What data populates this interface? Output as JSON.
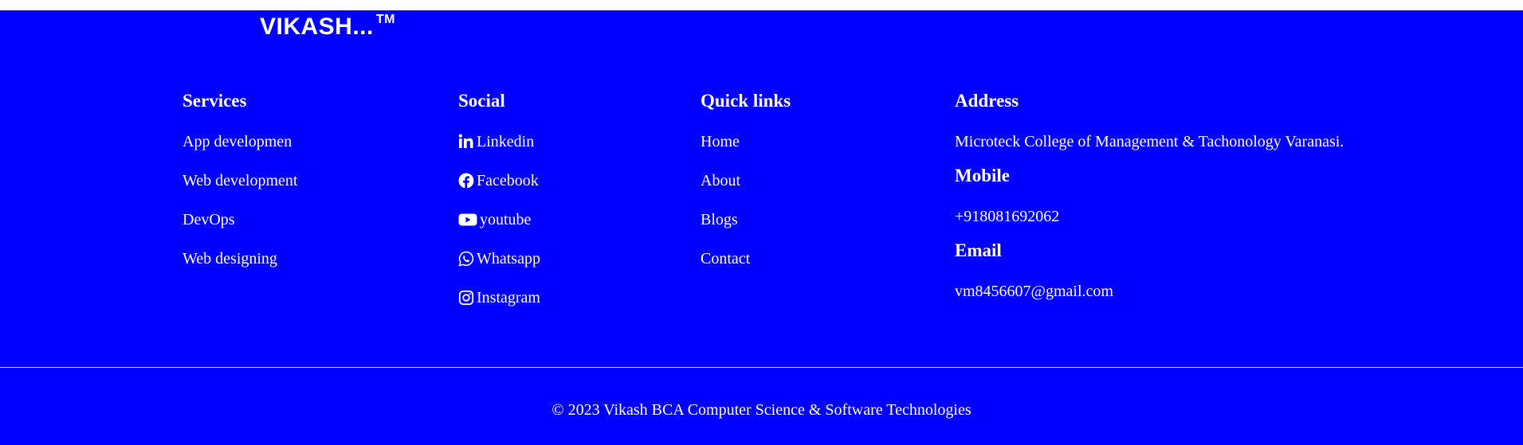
{
  "brand": {
    "name": "VIKASH...",
    "tm": "TM"
  },
  "services": {
    "heading": "Services",
    "items": [
      "App developmen",
      "Web development",
      "DevOps",
      "Web designing"
    ]
  },
  "social": {
    "heading": "Social",
    "items": [
      {
        "label": "Linkedin",
        "icon": "linkedin-icon"
      },
      {
        "label": "Facebook",
        "icon": "facebook-icon"
      },
      {
        "label": "youtube",
        "icon": "youtube-icon"
      },
      {
        "label": "Whatsapp",
        "icon": "whatsapp-icon"
      },
      {
        "label": "Instagram",
        "icon": "instagram-icon"
      }
    ]
  },
  "quick_links": {
    "heading": "Quick links",
    "items": [
      "Home",
      "About",
      "Blogs",
      "Contact"
    ]
  },
  "contact": {
    "address_heading": "Address",
    "address": "Microteck College of Management & Tachonology Varanasi.",
    "mobile_heading": "Mobile",
    "mobile": "+918081692062",
    "email_heading": "Email",
    "email": "vm8456607@gmail.com"
  },
  "copyright": "© 2023 Vikash BCA Computer Science & Software Technologies",
  "colors": {
    "background": "#0000ff",
    "text": "#ffffff"
  }
}
